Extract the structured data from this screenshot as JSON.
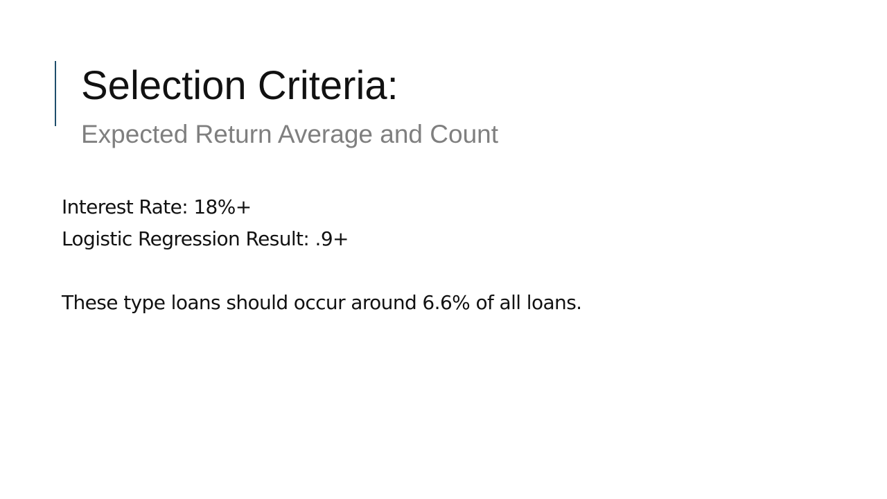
{
  "slide": {
    "title": "Selection Criteria:",
    "subtitle": "Expected Return Average and Count",
    "body": {
      "line1": "Interest Rate: 18%+",
      "line2": "Logistic Regression Result: .9+",
      "line3": "These type loans should occur around 6.6% of all loans."
    }
  },
  "colors": {
    "accent": "#1f4e6b",
    "title": "#111111",
    "subtitle": "#7f7f7f",
    "background": "#ffffff"
  }
}
